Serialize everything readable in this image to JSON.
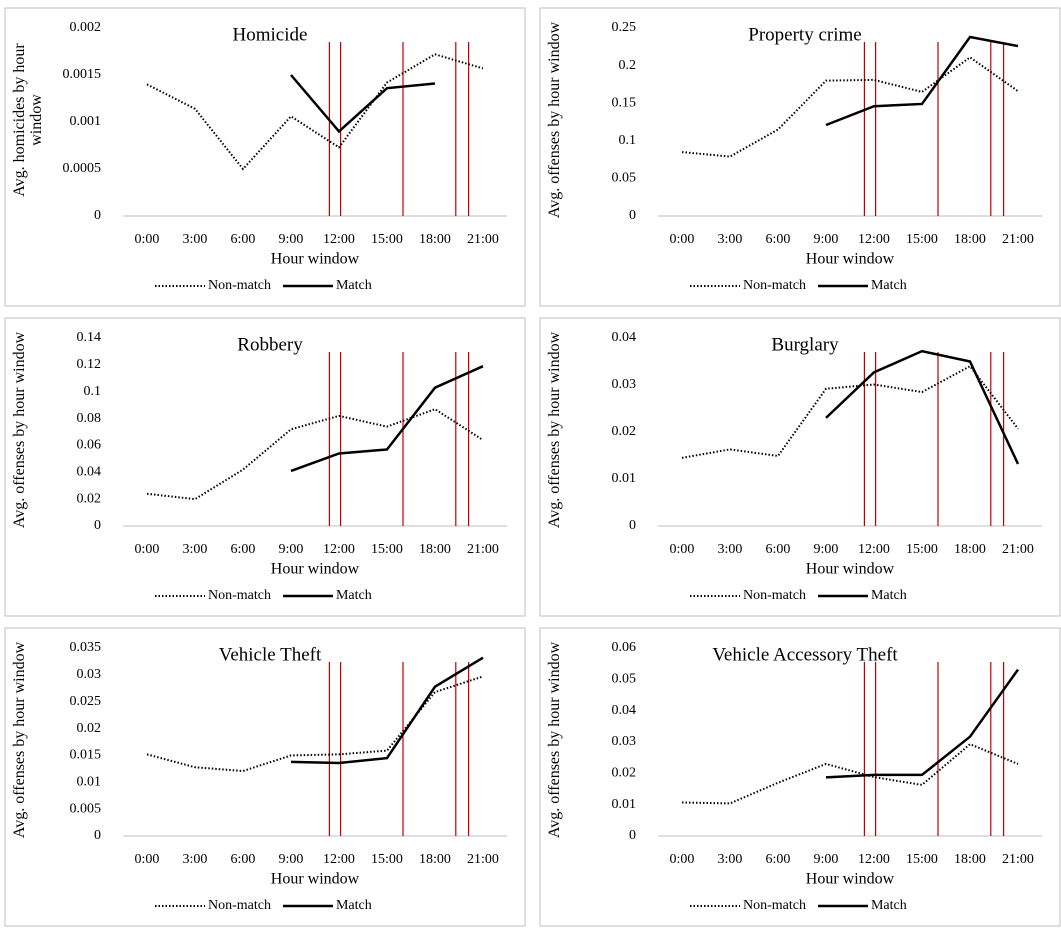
{
  "chart_data": [
    {
      "type": "line",
      "title": "Homicide",
      "y_label": "Avg. homicides by hour window",
      "x_label": "Hour window",
      "x": [
        0,
        3,
        6,
        9,
        12,
        15,
        18,
        21
      ],
      "xlim": [
        -1.5,
        22.5
      ],
      "xticks": [
        {
          "value": 0,
          "label": "0:00"
        },
        {
          "value": 3,
          "label": "3:00"
        },
        {
          "value": 6,
          "label": "6:00"
        },
        {
          "value": 9,
          "label": "9:00"
        },
        {
          "value": 12,
          "label": "12:00"
        },
        {
          "value": 15,
          "label": "15:00"
        },
        {
          "value": 18,
          "label": "18:00"
        },
        {
          "value": 21,
          "label": "21:00"
        }
      ],
      "ylim": [
        0,
        0.002
      ],
      "yticks": [
        0,
        0.0005,
        0.001,
        0.0015,
        0.002
      ],
      "vlines": [
        11.4,
        12.1,
        16,
        19.3,
        20.1
      ],
      "vline_color": "#c00000",
      "series": [
        {
          "name": "Non-match",
          "color": "#000000",
          "style": "dotted",
          "values": [
            0.0014,
            0.00114,
            0.0005,
            0.00106,
            0.00073,
            0.00142,
            0.00172,
            0.00157
          ]
        },
        {
          "name": "Match",
          "color": "#000000",
          "style": "solid",
          "values": [
            null,
            null,
            null,
            0.0015,
            0.0009,
            0.00136,
            0.00141,
            null
          ]
        }
      ]
    },
    {
      "type": "line",
      "title": "Property crime",
      "y_label": "Avg. offenses by hour window",
      "x_label": "Hour window",
      "x": [
        0,
        3,
        6,
        9,
        12,
        15,
        18,
        21
      ],
      "xlim": [
        -1.5,
        22.5
      ],
      "xticks": [
        {
          "value": 0,
          "label": "0:00"
        },
        {
          "value": 3,
          "label": "3:00"
        },
        {
          "value": 6,
          "label": "6:00"
        },
        {
          "value": 9,
          "label": "9:00"
        },
        {
          "value": 12,
          "label": "12:00"
        },
        {
          "value": 15,
          "label": "15:00"
        },
        {
          "value": 18,
          "label": "18:00"
        },
        {
          "value": 21,
          "label": "21:00"
        }
      ],
      "ylim": [
        0,
        0.25
      ],
      "yticks": [
        0,
        0.05,
        0.1,
        0.15,
        0.2,
        0.25
      ],
      "vlines": [
        11.4,
        12.1,
        16,
        19.3,
        20.1
      ],
      "vline_color": "#c00000",
      "series": [
        {
          "name": "Non-match",
          "color": "#000000",
          "style": "dotted",
          "values": [
            0.085,
            0.079,
            0.115,
            0.18,
            0.181,
            0.165,
            0.211,
            0.166
          ]
        },
        {
          "name": "Match",
          "color": "#000000",
          "style": "solid",
          "values": [
            null,
            null,
            null,
            0.121,
            0.146,
            0.149,
            0.238,
            0.226
          ]
        }
      ]
    },
    {
      "type": "line",
      "title": "Robbery",
      "y_label": "Avg. offenses by hour window",
      "x_label": "Hour window",
      "x": [
        0,
        3,
        6,
        9,
        12,
        15,
        18,
        21
      ],
      "xlim": [
        -1.5,
        22.5
      ],
      "xticks": [
        {
          "value": 0,
          "label": "0:00"
        },
        {
          "value": 3,
          "label": "3:00"
        },
        {
          "value": 6,
          "label": "6:00"
        },
        {
          "value": 9,
          "label": "9:00"
        },
        {
          "value": 12,
          "label": "12:00"
        },
        {
          "value": 15,
          "label": "15:00"
        },
        {
          "value": 18,
          "label": "18:00"
        },
        {
          "value": 21,
          "label": "21:00"
        }
      ],
      "ylim": [
        0,
        0.14
      ],
      "yticks": [
        0,
        0.02,
        0.04,
        0.06,
        0.08,
        0.1,
        0.12,
        0.14
      ],
      "vlines": [
        11.4,
        12.1,
        16,
        19.3,
        20.1
      ],
      "vline_color": "#c00000",
      "series": [
        {
          "name": "Non-match",
          "color": "#000000",
          "style": "dotted",
          "values": [
            0.024,
            0.02,
            0.042,
            0.072,
            0.082,
            0.074,
            0.087,
            0.064
          ]
        },
        {
          "name": "Match",
          "color": "#000000",
          "style": "solid",
          "values": [
            null,
            null,
            null,
            0.041,
            0.054,
            0.057,
            0.103,
            0.119
          ]
        }
      ]
    },
    {
      "type": "line",
      "title": "Burglary",
      "y_label": "Avg. offenses by hour window",
      "x_label": "Hour window",
      "x": [
        0,
        3,
        6,
        9,
        12,
        15,
        18,
        21
      ],
      "xlim": [
        -1.5,
        22.5
      ],
      "xticks": [
        {
          "value": 0,
          "label": "0:00"
        },
        {
          "value": 3,
          "label": "3:00"
        },
        {
          "value": 6,
          "label": "6:00"
        },
        {
          "value": 9,
          "label": "9:00"
        },
        {
          "value": 12,
          "label": "12:00"
        },
        {
          "value": 15,
          "label": "15:00"
        },
        {
          "value": 18,
          "label": "18:00"
        },
        {
          "value": 21,
          "label": "21:00"
        }
      ],
      "ylim": [
        0,
        0.04
      ],
      "yticks": [
        0,
        0.01,
        0.02,
        0.03,
        0.04
      ],
      "vlines": [
        11.4,
        12.1,
        16,
        19.3,
        20.1
      ],
      "vline_color": "#c00000",
      "series": [
        {
          "name": "Non-match",
          "color": "#000000",
          "style": "dotted",
          "values": [
            0.0145,
            0.0163,
            0.0149,
            0.0292,
            0.0301,
            0.0285,
            0.034,
            0.0207
          ]
        },
        {
          "name": "Match",
          "color": "#000000",
          "style": "solid",
          "values": [
            null,
            null,
            null,
            0.023,
            0.0327,
            0.0372,
            0.035,
            0.0132
          ]
        }
      ]
    },
    {
      "type": "line",
      "title": "Vehicle Theft",
      "y_label": "Avg. offenses by hour window",
      "x_label": "Hour window",
      "x": [
        0,
        3,
        6,
        9,
        12,
        15,
        18,
        21
      ],
      "xlim": [
        -1.5,
        22.5
      ],
      "xticks": [
        {
          "value": 0,
          "label": "0:00"
        },
        {
          "value": 3,
          "label": "3:00"
        },
        {
          "value": 6,
          "label": "6:00"
        },
        {
          "value": 9,
          "label": "9:00"
        },
        {
          "value": 12,
          "label": "12:00"
        },
        {
          "value": 15,
          "label": "15:00"
        },
        {
          "value": 18,
          "label": "18:00"
        },
        {
          "value": 21,
          "label": "21:00"
        }
      ],
      "ylim": [
        0,
        0.035
      ],
      "yticks": [
        0,
        0.005,
        0.01,
        0.015,
        0.02,
        0.025,
        0.03,
        0.035
      ],
      "vlines": [
        11.4,
        12.1,
        16,
        19.3,
        20.1
      ],
      "vline_color": "#c00000",
      "series": [
        {
          "name": "Non-match",
          "color": "#000000",
          "style": "dotted",
          "values": [
            0.0152,
            0.0128,
            0.0121,
            0.015,
            0.0152,
            0.0159,
            0.0268,
            0.0297
          ]
        },
        {
          "name": "Match",
          "color": "#000000",
          "style": "solid",
          "values": [
            null,
            null,
            null,
            0.0138,
            0.0136,
            0.0145,
            0.0278,
            0.0332
          ]
        }
      ]
    },
    {
      "type": "line",
      "title": "Vehicle Accessory Theft",
      "y_label": "Avg. offenses by hour window",
      "x_label": "Hour window",
      "x": [
        0,
        3,
        6,
        9,
        12,
        15,
        18,
        21
      ],
      "xlim": [
        -1.5,
        22.5
      ],
      "xticks": [
        {
          "value": 0,
          "label": "0:00"
        },
        {
          "value": 3,
          "label": "3:00"
        },
        {
          "value": 6,
          "label": "6:00"
        },
        {
          "value": 9,
          "label": "9:00"
        },
        {
          "value": 12,
          "label": "12:00"
        },
        {
          "value": 15,
          "label": "15:00"
        },
        {
          "value": 18,
          "label": "18:00"
        },
        {
          "value": 21,
          "label": "21:00"
        }
      ],
      "ylim": [
        0,
        0.06
      ],
      "yticks": [
        0,
        0.01,
        0.02,
        0.03,
        0.04,
        0.05,
        0.06
      ],
      "vlines": [
        11.4,
        12.1,
        16,
        19.3,
        20.1
      ],
      "vline_color": "#c00000",
      "series": [
        {
          "name": "Non-match",
          "color": "#000000",
          "style": "dotted",
          "values": [
            0.0107,
            0.0104,
            0.017,
            0.023,
            0.0188,
            0.0163,
            0.0293,
            0.023
          ]
        },
        {
          "name": "Match",
          "color": "#000000",
          "style": "solid",
          "values": [
            null,
            null,
            null,
            0.0187,
            0.0195,
            0.0195,
            0.0317,
            0.0531
          ]
        }
      ]
    }
  ]
}
